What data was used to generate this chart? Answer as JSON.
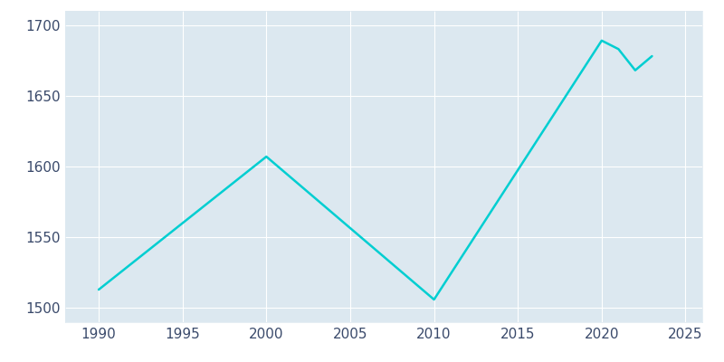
{
  "years": [
    1990,
    2000,
    2010,
    2020,
    2021,
    2022,
    2023
  ],
  "population": [
    1513,
    1607,
    1506,
    1689,
    1683,
    1668,
    1678
  ],
  "line_color": "#00CED1",
  "background_color": "#dce8f0",
  "outer_background": "#ffffff",
  "xlim": [
    1988,
    2026
  ],
  "ylim": [
    1490,
    1710
  ],
  "xticks": [
    1990,
    1995,
    2000,
    2005,
    2010,
    2015,
    2020,
    2025
  ],
  "yticks": [
    1500,
    1550,
    1600,
    1650,
    1700
  ],
  "grid_color": "#ffffff",
  "tick_label_color": "#3a4a6b",
  "figsize": [
    8.0,
    4.0
  ],
  "dpi": 100
}
